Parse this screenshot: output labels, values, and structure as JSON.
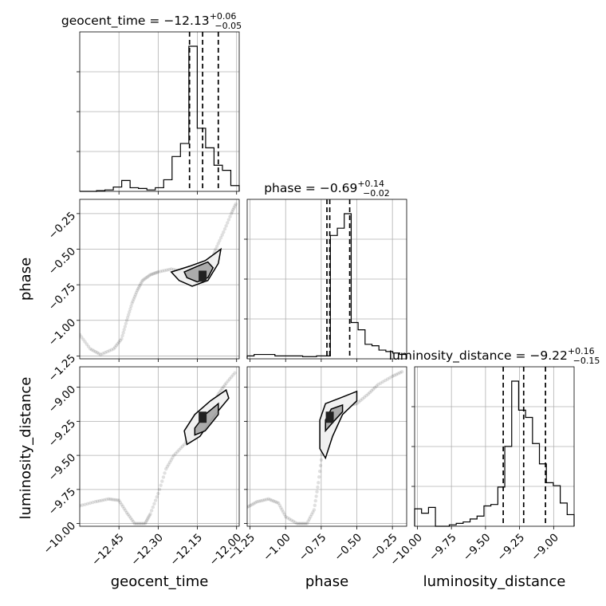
{
  "chart_data": {
    "type": "corner",
    "parameters": [
      "geocent_time",
      "phase",
      "luminosity_distance"
    ],
    "titles": [
      {
        "param": "geocent_time",
        "prefix": "geocent_time = ",
        "median": "−12.13",
        "plus": "+0.06",
        "minus": "−0.05"
      },
      {
        "param": "phase",
        "prefix": "phase = ",
        "median": "−0.69",
        "plus": "+0.14",
        "minus": "−0.02"
      },
      {
        "param": "luminosity_distance",
        "prefix": "luminosity_distance = ",
        "median": "−9.22",
        "plus": "+0.16",
        "minus": "−0.15"
      }
    ],
    "axis_labels": {
      "x": [
        "geocent_time",
        "phase",
        "luminosity_distance"
      ],
      "y": [
        "phase",
        "luminosity_distance"
      ]
    },
    "ranges": {
      "geocent_time": [
        -12.6,
        -11.99
      ],
      "phase": [
        -1.27,
        -0.15
      ],
      "luminosity_distance": [
        -10.02,
        -8.85
      ]
    },
    "ticks": {
      "geocent_time": {
        "values": [
          -12.45,
          -12.3,
          -12.15,
          -12.0
        ],
        "labels": [
          "−12.45",
          "−12.30",
          "−12.15",
          "−12.00"
        ]
      },
      "phase": {
        "values": [
          -1.25,
          -1.0,
          -0.75,
          -0.5,
          -0.25
        ],
        "labels": [
          "−1.25",
          "−1.00",
          "−0.75",
          "−0.50",
          "−0.25"
        ]
      },
      "luminosity_distance": {
        "values": [
          -10.0,
          -9.75,
          -9.5,
          -9.25,
          -9.0
        ],
        "labels": [
          "−10.00",
          "−9.75",
          "−9.50",
          "−9.25",
          "−9.00"
        ]
      }
    },
    "quantiles": {
      "geocent_time": [
        -12.18,
        -12.13,
        -12.07
      ],
      "phase": [
        -0.71,
        -0.69,
        -0.55
      ],
      "luminosity_distance": [
        -9.37,
        -9.22,
        -9.06
      ]
    },
    "histograms": {
      "geocent_time": [
        0,
        0,
        0.005,
        0.01,
        0.03,
        0.075,
        0.025,
        0.02,
        0.01,
        0.025,
        0.08,
        0.24,
        0.33,
        1.0,
        0.435,
        0.3,
        0.18,
        0.145,
        0.04
      ],
      "phase": [
        0.02,
        0.03,
        0.03,
        0.03,
        0.02,
        0.02,
        0.02,
        0.02,
        0.015,
        0.015,
        0.02,
        0.02,
        0.85,
        0.9,
        1.0,
        0.25,
        0.2,
        0.1,
        0.09,
        0.06,
        0.05,
        0.04,
        0.03
      ],
      "luminosity_distance": [
        0.12,
        0.09,
        0.13,
        0.0,
        0.0,
        0.01,
        0.02,
        0.03,
        0.05,
        0.07,
        0.14,
        0.15,
        0.27,
        0.55,
        1.0,
        0.8,
        0.75,
        0.57,
        0.43,
        0.3,
        0.28,
        0.16,
        0.08
      ]
    },
    "samples": {
      "geocent_vs_phase": [
        [
          -12.6,
          -1.1
        ],
        [
          -12.56,
          -1.2
        ],
        [
          -12.52,
          -1.24
        ],
        [
          -12.47,
          -1.2
        ],
        [
          -12.44,
          -1.13
        ],
        [
          -12.42,
          -1.0
        ],
        [
          -12.4,
          -0.88
        ],
        [
          -12.38,
          -0.79
        ],
        [
          -12.36,
          -0.72
        ],
        [
          -12.33,
          -0.68
        ],
        [
          -12.3,
          -0.66
        ],
        [
          -12.25,
          -0.64
        ],
        [
          -12.2,
          -0.66
        ],
        [
          -12.16,
          -0.69
        ],
        [
          -12.13,
          -0.7
        ],
        [
          -12.1,
          -0.6
        ],
        [
          -12.08,
          -0.5
        ],
        [
          -12.05,
          -0.38
        ],
        [
          -12.02,
          -0.25
        ],
        [
          -12.0,
          -0.17
        ]
      ],
      "geocent_vs_distance": [
        [
          -12.6,
          -9.87
        ],
        [
          -12.54,
          -9.84
        ],
        [
          -12.49,
          -9.82
        ],
        [
          -12.45,
          -9.83
        ],
        [
          -12.42,
          -9.92
        ],
        [
          -12.39,
          -10.0
        ],
        [
          -12.35,
          -10.0
        ],
        [
          -12.33,
          -9.93
        ],
        [
          -12.3,
          -9.78
        ],
        [
          -12.27,
          -9.6
        ],
        [
          -12.24,
          -9.5
        ],
        [
          -12.2,
          -9.42
        ],
        [
          -12.16,
          -9.3
        ],
        [
          -12.13,
          -9.24
        ],
        [
          -12.1,
          -9.15
        ],
        [
          -12.07,
          -9.05
        ],
        [
          -12.04,
          -8.97
        ],
        [
          -12.0,
          -8.88
        ]
      ],
      "phase_vs_distance": [
        [
          -1.27,
          -9.88
        ],
        [
          -1.2,
          -9.84
        ],
        [
          -1.12,
          -9.82
        ],
        [
          -1.05,
          -9.85
        ],
        [
          -1.0,
          -9.95
        ],
        [
          -0.92,
          -10.0
        ],
        [
          -0.85,
          -10.0
        ],
        [
          -0.8,
          -9.9
        ],
        [
          -0.77,
          -9.7
        ],
        [
          -0.74,
          -9.45
        ],
        [
          -0.73,
          -9.3
        ],
        [
          -0.7,
          -9.24
        ],
        [
          -0.65,
          -9.18
        ],
        [
          -0.58,
          -9.14
        ],
        [
          -0.5,
          -9.12
        ],
        [
          -0.42,
          -9.05
        ],
        [
          -0.35,
          -8.98
        ],
        [
          -0.25,
          -8.92
        ],
        [
          -0.17,
          -8.88
        ]
      ]
    },
    "contours": {
      "geocent_vs_phase": [
        [
          [
            -12.25,
            -0.66
          ],
          [
            -12.18,
            -0.62
          ],
          [
            -12.12,
            -0.58
          ],
          [
            -12.06,
            -0.5
          ],
          [
            -12.07,
            -0.6
          ],
          [
            -12.11,
            -0.72
          ],
          [
            -12.17,
            -0.76
          ],
          [
            -12.22,
            -0.72
          ]
        ],
        [
          [
            -12.2,
            -0.66
          ],
          [
            -12.15,
            -0.62
          ],
          [
            -12.11,
            -0.59
          ],
          [
            -12.09,
            -0.63
          ],
          [
            -12.11,
            -0.7
          ],
          [
            -12.15,
            -0.73
          ],
          [
            -12.19,
            -0.7
          ]
        ]
      ],
      "geocent_vs_distance": [
        [
          [
            -12.2,
            -9.32
          ],
          [
            -12.16,
            -9.2
          ],
          [
            -12.1,
            -9.1
          ],
          [
            -12.04,
            -9.02
          ],
          [
            -12.03,
            -9.08
          ],
          [
            -12.09,
            -9.22
          ],
          [
            -12.14,
            -9.36
          ],
          [
            -12.19,
            -9.42
          ]
        ],
        [
          [
            -12.16,
            -9.3
          ],
          [
            -12.12,
            -9.2
          ],
          [
            -12.07,
            -9.12
          ],
          [
            -12.07,
            -9.2
          ],
          [
            -12.12,
            -9.32
          ],
          [
            -12.16,
            -9.35
          ]
        ]
      ],
      "phase_vs_distance": [
        [
          [
            -0.76,
            -9.24
          ],
          [
            -0.72,
            -9.12
          ],
          [
            -0.62,
            -9.08
          ],
          [
            -0.5,
            -9.03
          ],
          [
            -0.5,
            -9.1
          ],
          [
            -0.6,
            -9.2
          ],
          [
            -0.67,
            -9.36
          ],
          [
            -0.72,
            -9.52
          ],
          [
            -0.76,
            -9.45
          ]
        ],
        [
          [
            -0.72,
            -9.24
          ],
          [
            -0.68,
            -9.16
          ],
          [
            -0.6,
            -9.13
          ],
          [
            -0.6,
            -9.18
          ],
          [
            -0.67,
            -9.26
          ],
          [
            -0.72,
            -9.32
          ]
        ]
      ]
    }
  }
}
